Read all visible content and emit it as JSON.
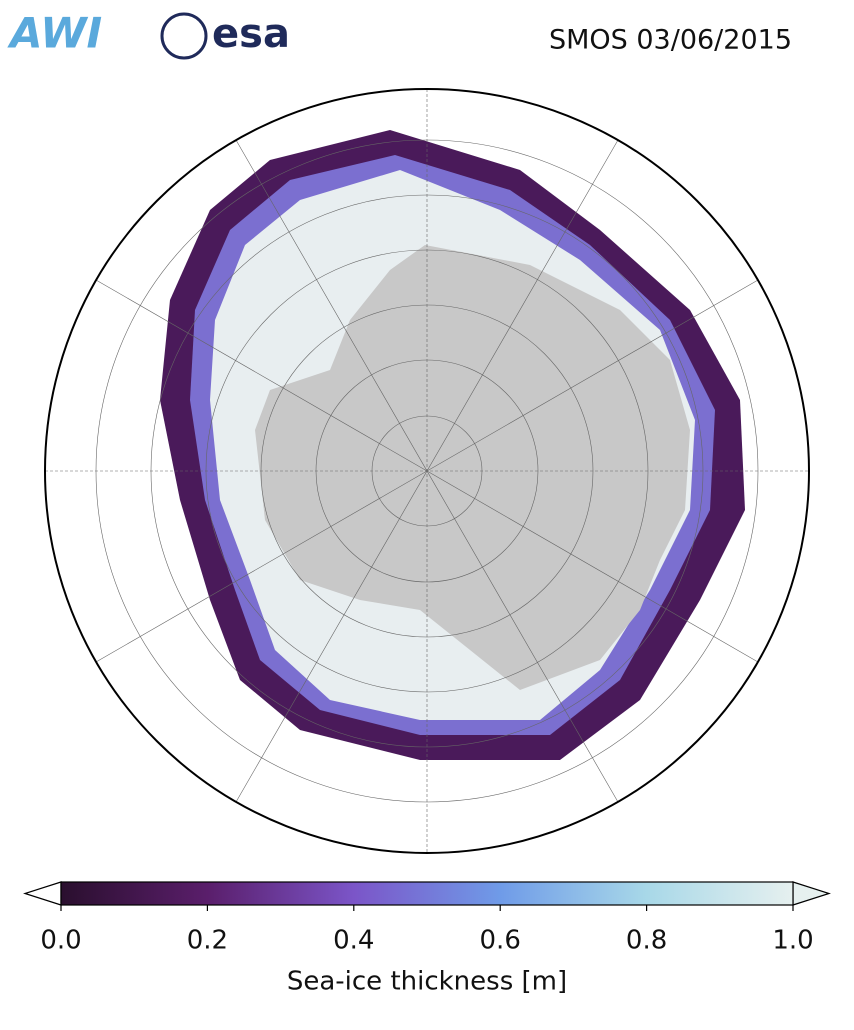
{
  "logos": [
    "AWI",
    "esa"
  ],
  "title": "SMOS 03/06/2015",
  "colorbar": {
    "xlim": [
      0,
      1
    ],
    "xticks": [
      {
        "value": 0,
        "label": "0.0"
      },
      {
        "value": 0.2,
        "label": "0.2"
      },
      {
        "value": 0.4,
        "label": "0.4"
      },
      {
        "value": 0.6,
        "label": "0.6"
      },
      {
        "value": 0.8,
        "label": "0.8"
      },
      {
        "value": 1,
        "label": "1.0"
      }
    ],
    "label": "Sea-ice thickness [m]",
    "colors": [
      "#2a0f2e",
      "#5a1e6b",
      "#7b55c8",
      "#6f9be8",
      "#a8d8e8",
      "#e6f0ef"
    ],
    "under_color": "#ffffff",
    "over_color": "#e6f0ef"
  }
}
